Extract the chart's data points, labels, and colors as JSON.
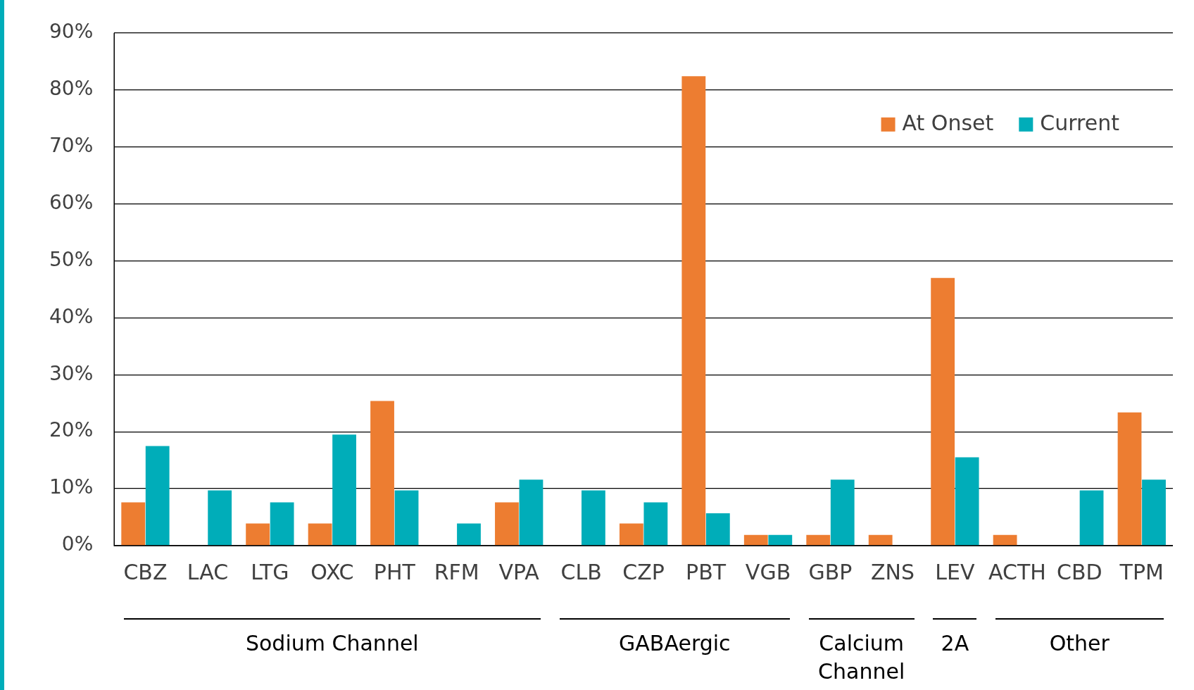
{
  "chart_data": {
    "type": "bar",
    "categories": [
      "CBZ",
      "LAC",
      "LTG",
      "OXC",
      "PHT",
      "RFM",
      "VPA",
      "CLB",
      "CZP",
      "PBT",
      "VGB",
      "GBP",
      "ZNS",
      "LEV",
      "ACTH",
      "CBD",
      "TPM"
    ],
    "series": [
      {
        "name": "At Onset",
        "color": "#ed7d31",
        "values": [
          7.6,
          0,
          3.9,
          3.9,
          25.4,
          0,
          7.6,
          0,
          3.9,
          82.4,
          1.9,
          1.9,
          1.9,
          47.0,
          1.9,
          0,
          23.4
        ]
      },
      {
        "name": "Current",
        "color": "#00adb9",
        "values": [
          17.5,
          9.7,
          7.6,
          19.5,
          9.7,
          3.9,
          11.6,
          9.7,
          7.6,
          5.7,
          1.9,
          11.6,
          0,
          15.5,
          0,
          9.7,
          11.6
        ]
      }
    ],
    "ylim": [
      0,
      90
    ],
    "yticks": [
      {
        "value": 0,
        "label": "0%"
      },
      {
        "value": 10,
        "label": "10%"
      },
      {
        "value": 20,
        "label": "20%"
      },
      {
        "value": 30,
        "label": "30%"
      },
      {
        "value": 40,
        "label": "40%"
      },
      {
        "value": 50,
        "label": "50%"
      },
      {
        "value": 60,
        "label": "60%"
      },
      {
        "value": 70,
        "label": "70%"
      },
      {
        "value": 80,
        "label": "80%"
      },
      {
        "value": 90,
        "label": "90%"
      }
    ],
    "grid": "y",
    "legend": "top right",
    "annotations": [
      "Sodium Channel",
      "GABAergic",
      "Calcium Channel",
      "2A",
      "Other"
    ]
  }
}
